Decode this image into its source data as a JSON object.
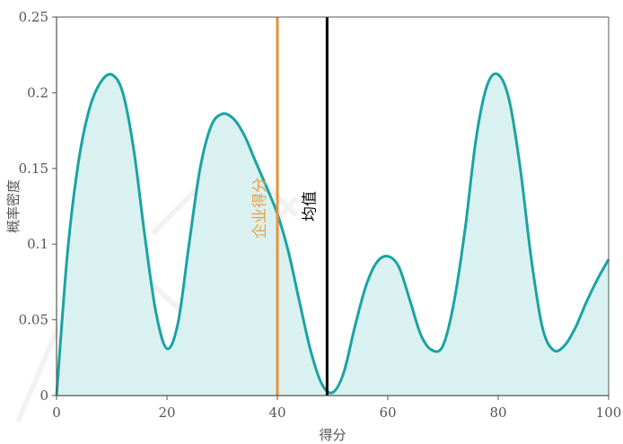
{
  "chart_data": {
    "type": "area",
    "xlabel": "得分",
    "ylabel": "概率密度",
    "xlim": [
      0,
      100
    ],
    "ylim": [
      0,
      0.25
    ],
    "xticks": [
      0,
      20,
      40,
      60,
      80,
      100
    ],
    "xtick_labels": [
      "0",
      "20",
      "40",
      "60",
      "80",
      "100"
    ],
    "yticks": [
      0,
      0.05,
      0.1,
      0.15,
      0.2,
      0.25
    ],
    "ytick_labels": [
      "0",
      "0.05",
      "0.1",
      "0.15",
      "0.2",
      "0.25"
    ],
    "grid": false,
    "series": [
      {
        "x": [
          0,
          2,
          4,
          6,
          8,
          10,
          12,
          14,
          16,
          18,
          20,
          22,
          24,
          26,
          28,
          30,
          32,
          34,
          36,
          38,
          40,
          42,
          44,
          46,
          48,
          50,
          52,
          54,
          56,
          58,
          60,
          62,
          64,
          66,
          68,
          70,
          72,
          74,
          76,
          78,
          80,
          82,
          84,
          86,
          88,
          90,
          92,
          94,
          96,
          98,
          100
        ],
        "y": [
          0,
          0.095,
          0.155,
          0.19,
          0.207,
          0.212,
          0.2,
          0.162,
          0.105,
          0.055,
          0.031,
          0.048,
          0.1,
          0.15,
          0.178,
          0.186,
          0.183,
          0.172,
          0.155,
          0.138,
          0.12,
          0.095,
          0.062,
          0.03,
          0.008,
          0.002,
          0.015,
          0.045,
          0.072,
          0.088,
          0.092,
          0.085,
          0.063,
          0.04,
          0.03,
          0.033,
          0.062,
          0.11,
          0.17,
          0.205,
          0.212,
          0.195,
          0.15,
          0.09,
          0.045,
          0.03,
          0.033,
          0.045,
          0.062,
          0.077,
          0.09
        ]
      }
    ],
    "vlines": [
      {
        "label": "企业得分",
        "x": 40,
        "color": "#e8913a",
        "label_color": "#e8a040"
      },
      {
        "label": "均值",
        "x": 49,
        "color": "#000000",
        "label_color": "#000000"
      }
    ],
    "colors": {
      "line": "#1aa3a3",
      "fill": "#daf1f1",
      "axis": "#555555"
    }
  }
}
